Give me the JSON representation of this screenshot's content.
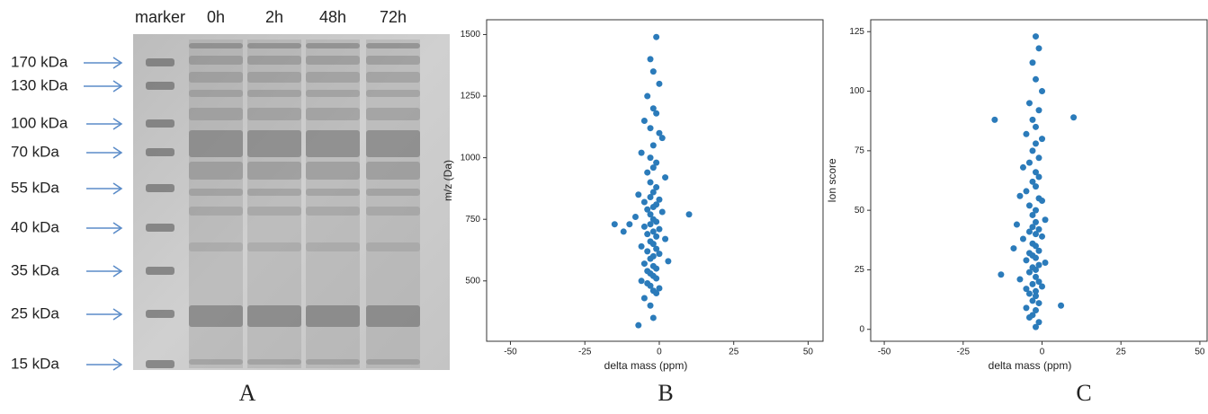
{
  "chart_data": [
    {
      "type": "gel",
      "panel_label": "A",
      "lanes": [
        "marker",
        "0h",
        "2h",
        "48h",
        "72h"
      ],
      "markers": [
        "170 kDa",
        "130 kDa",
        "100 kDa",
        "70 kDa",
        "55 kDa",
        "40 kDa",
        "35 kDa",
        "25 kDa",
        "15 kDa"
      ]
    },
    {
      "type": "scatter",
      "panel_label": "B",
      "xlabel": "delta mass (ppm)",
      "ylabel": "m/z (Da)",
      "color": "#2b7bba",
      "xlim": [
        -58,
        55
      ],
      "ylim": [
        255,
        1560
      ],
      "xticks": [
        -50,
        -25,
        0,
        25,
        50
      ],
      "yticks": [
        500,
        750,
        1000,
        1250,
        1500
      ],
      "x": [
        -1,
        -3,
        -2,
        0,
        -4,
        -2,
        -1,
        -5,
        -3,
        0,
        1,
        -2,
        -6,
        -3,
        -1,
        -2,
        -4,
        2,
        -3,
        -1,
        -2,
        -7,
        -3,
        0,
        -5,
        -1,
        -2,
        -4,
        1,
        -3,
        -8,
        -2,
        -1,
        -3,
        -5,
        0,
        -2,
        -4,
        -1,
        2,
        -10,
        -3,
        -2,
        -6,
        -1,
        -4,
        0,
        -2,
        -3,
        3,
        -12,
        -5,
        -2,
        -1,
        -4,
        -3,
        10,
        -15,
        -2,
        -1,
        -6,
        -4,
        -3,
        0,
        -2,
        -1,
        -5,
        -3,
        -2,
        -7
      ],
      "y": [
        1490,
        1400,
        1350,
        1300,
        1250,
        1200,
        1180,
        1150,
        1120,
        1100,
        1080,
        1050,
        1020,
        1000,
        980,
        960,
        940,
        920,
        900,
        880,
        860,
        850,
        840,
        830,
        820,
        810,
        800,
        790,
        780,
        770,
        760,
        750,
        740,
        730,
        720,
        710,
        700,
        690,
        680,
        670,
        730,
        660,
        650,
        640,
        630,
        620,
        610,
        600,
        590,
        580,
        700,
        570,
        560,
        550,
        540,
        530,
        770,
        730,
        520,
        510,
        500,
        490,
        480,
        470,
        460,
        450,
        430,
        400,
        350,
        320
      ]
    },
    {
      "type": "scatter",
      "panel_label": "C",
      "xlabel": "delta mass (ppm)",
      "ylabel": "Ion score",
      "color": "#2b7bba",
      "xlim": [
        -54.3,
        52.3
      ],
      "ylim": [
        -5,
        130
      ],
      "xticks": [
        -50,
        -25,
        0,
        25,
        50
      ],
      "yticks": [
        0,
        25,
        50,
        75,
        100,
        125
      ],
      "x": [
        -2,
        -1,
        -3,
        -2,
        0,
        -4,
        -1,
        -3,
        -2,
        -5,
        0,
        -2,
        -3,
        -1,
        -4,
        -6,
        -2,
        -1,
        10,
        -15,
        -3,
        -2,
        -5,
        -7,
        -1,
        0,
        -4,
        -2,
        -3,
        1,
        -2,
        -8,
        -3,
        -1,
        -4,
        -2,
        0,
        -6,
        -3,
        -2,
        -9,
        -1,
        -4,
        -3,
        -2,
        -5,
        1,
        -1,
        -3,
        -2,
        -13,
        -4,
        -2,
        -7,
        -1,
        -3,
        0,
        -5,
        -2,
        6,
        -4,
        -2,
        -3,
        -1,
        -5,
        -2,
        -3,
        -4,
        -1,
        -2
      ],
      "y": [
        123,
        118,
        112,
        105,
        100,
        95,
        92,
        88,
        85,
        82,
        80,
        78,
        75,
        72,
        70,
        68,
        66,
        64,
        89,
        88,
        62,
        60,
        58,
        56,
        55,
        54,
        52,
        50,
        48,
        46,
        45,
        44,
        43,
        42,
        41,
        40,
        39,
        38,
        36,
        35,
        34,
        33,
        32,
        31,
        30,
        29,
        28,
        27,
        26,
        25,
        23,
        24,
        22,
        21,
        20,
        19,
        18,
        17,
        16,
        10,
        15,
        14,
        12,
        11,
        9,
        8,
        6,
        5,
        3,
        1
      ]
    }
  ]
}
